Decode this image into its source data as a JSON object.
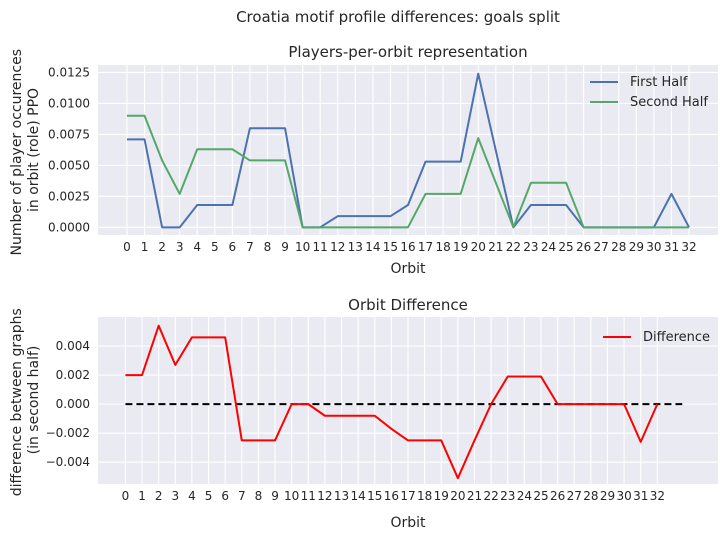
{
  "suptitle": "Croatia motif profile differences: goals split",
  "chart_data": [
    {
      "type": "line",
      "title": "Players-per-orbit representation",
      "xlabel": "Orbit",
      "ylabel_lines": [
        "Number of player occurences",
        "in orbit (role) PPO"
      ],
      "x": [
        0,
        1,
        2,
        3,
        4,
        5,
        6,
        7,
        8,
        9,
        10,
        11,
        12,
        13,
        14,
        15,
        16,
        17,
        18,
        19,
        20,
        21,
        22,
        23,
        24,
        25,
        26,
        27,
        28,
        29,
        30,
        31,
        32
      ],
      "xlim": [
        -1.65,
        33.65
      ],
      "ylim": [
        -0.00062,
        0.0131
      ],
      "yticks": [
        0,
        0.0025,
        0.005,
        0.0075,
        0.01,
        0.0125
      ],
      "ytick_labels": [
        "0.0000",
        "0.0025",
        "0.0050",
        "0.0075",
        "0.0100",
        "0.0125"
      ],
      "grid": true,
      "legend_position": "top-right",
      "series": [
        {
          "name": "First Half",
          "color": "#4c72b0",
          "values": [
            0.0071,
            0.0071,
            0,
            0,
            0.0018,
            0.0018,
            0.0018,
            0.008,
            0.008,
            0.008,
            0,
            0,
            0.0009,
            0.0009,
            0.0009,
            0.0009,
            0.0018,
            0.0053,
            0.0053,
            0.0053,
            0.0124,
            0.0062,
            0,
            0.0018,
            0.0018,
            0.0018,
            0,
            0,
            0,
            0,
            0,
            0.0027,
            0
          ]
        },
        {
          "name": "Second Half",
          "color": "#55a868",
          "values": [
            0.009,
            0.009,
            0.0054,
            0.0027,
            0.0063,
            0.0063,
            0.0063,
            0.0054,
            0.0054,
            0.0054,
            0,
            0,
            0,
            0,
            0,
            0,
            0,
            0.0027,
            0.0027,
            0.0027,
            0.0072,
            0.0036,
            0,
            0.0036,
            0.0036,
            0.0036,
            0,
            0,
            0,
            0,
            0,
            0,
            0
          ]
        }
      ]
    },
    {
      "type": "line",
      "title": "Orbit Difference",
      "xlabel": "Orbit",
      "ylabel_lines": [
        "difference between graphs",
        "(in second half)"
      ],
      "x": [
        0,
        1,
        2,
        3,
        4,
        5,
        6,
        7,
        8,
        9,
        10,
        11,
        12,
        13,
        14,
        15,
        16,
        17,
        18,
        19,
        20,
        21,
        22,
        23,
        24,
        25,
        26,
        27,
        28,
        29,
        30,
        31,
        32
      ],
      "xlim": [
        -1.65,
        35.65
      ],
      "ylim": [
        -0.0055,
        0.006
      ],
      "yticks": [
        -0.004,
        -0.002,
        0,
        0.002,
        0.004
      ],
      "ytick_labels": [
        "−0.004",
        "−0.002",
        "0.000",
        "0.002",
        "0.004"
      ],
      "grid": true,
      "legend_position": "top-right",
      "baseline": {
        "y": 0,
        "x_from": 0,
        "x_to": 33.5,
        "color": "#000000",
        "style": "dashed"
      },
      "series": [
        {
          "name": "Difference",
          "color": "#ff0000",
          "values": [
            0.002,
            0.002,
            0.0054,
            0.0027,
            0.0046,
            0.0046,
            0.0046,
            -0.0025,
            -0.0025,
            -0.0025,
            0,
            0,
            -0.0008,
            -0.0008,
            -0.0008,
            -0.0008,
            -0.0017,
            -0.0025,
            -0.0025,
            -0.0025,
            -0.0051,
            -0.0025,
            0,
            0.0019,
            0.0019,
            0.0019,
            0,
            0,
            0,
            0,
            0,
            -0.0026,
            0
          ]
        }
      ]
    }
  ]
}
